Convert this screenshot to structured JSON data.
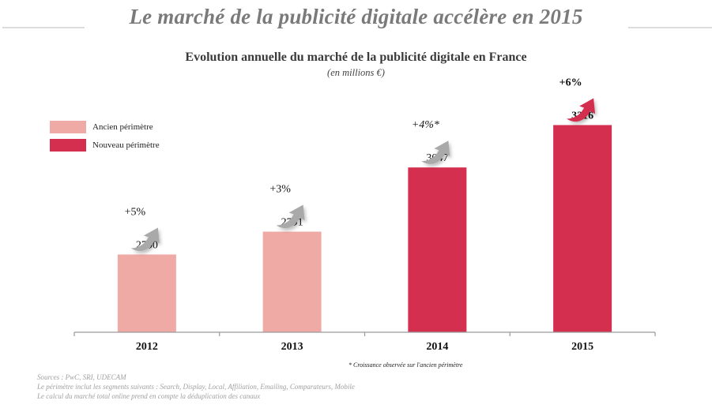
{
  "header": {
    "title": "Le marché de la publicité digitale accélère en 2015"
  },
  "chart_data": {
    "type": "bar",
    "title": "Evolution annuelle du marché de la publicité digitale en France",
    "subtitle": "(en millions €)",
    "xlabel": "",
    "ylabel": "",
    "categories": [
      "2012",
      "2013",
      "2014",
      "2015"
    ],
    "values": [
      2700,
      2791,
      3047,
      3216
    ],
    "series_membership": [
      "Ancien périmètre",
      "Ancien périmètre",
      "Nouveau périmètre",
      "Nouveau périmètre"
    ],
    "growth_labels": [
      "+5%",
      "+3%",
      "+4%*",
      "+6%"
    ],
    "growth_arrow_colors": [
      "#a9a9a9",
      "#a9a9a9",
      "#a9a9a9",
      "#d42f4f"
    ],
    "legend": [
      {
        "name": "Ancien périmètre",
        "color": "#f0aaa5"
      },
      {
        "name": "Nouveau périmètre",
        "color": "#d42f4f"
      }
    ],
    "legend_position": "top-left",
    "grid": false,
    "y_axis_visible": false,
    "ylim": [
      2390,
      3400
    ]
  },
  "footnotes": {
    "growth_note": "* Croissance observée  sur l'ancien périmètre",
    "sources": "Sources : PwC, SRI, UDECAM",
    "perimeter": "Le périmètre inclut les segments suivants : Search, Display, Local, Affiliation, Emailing, Comparateurs, Mobile",
    "dedup": "Le calcul du marché total online prend en compte la déduplication des canaux"
  }
}
